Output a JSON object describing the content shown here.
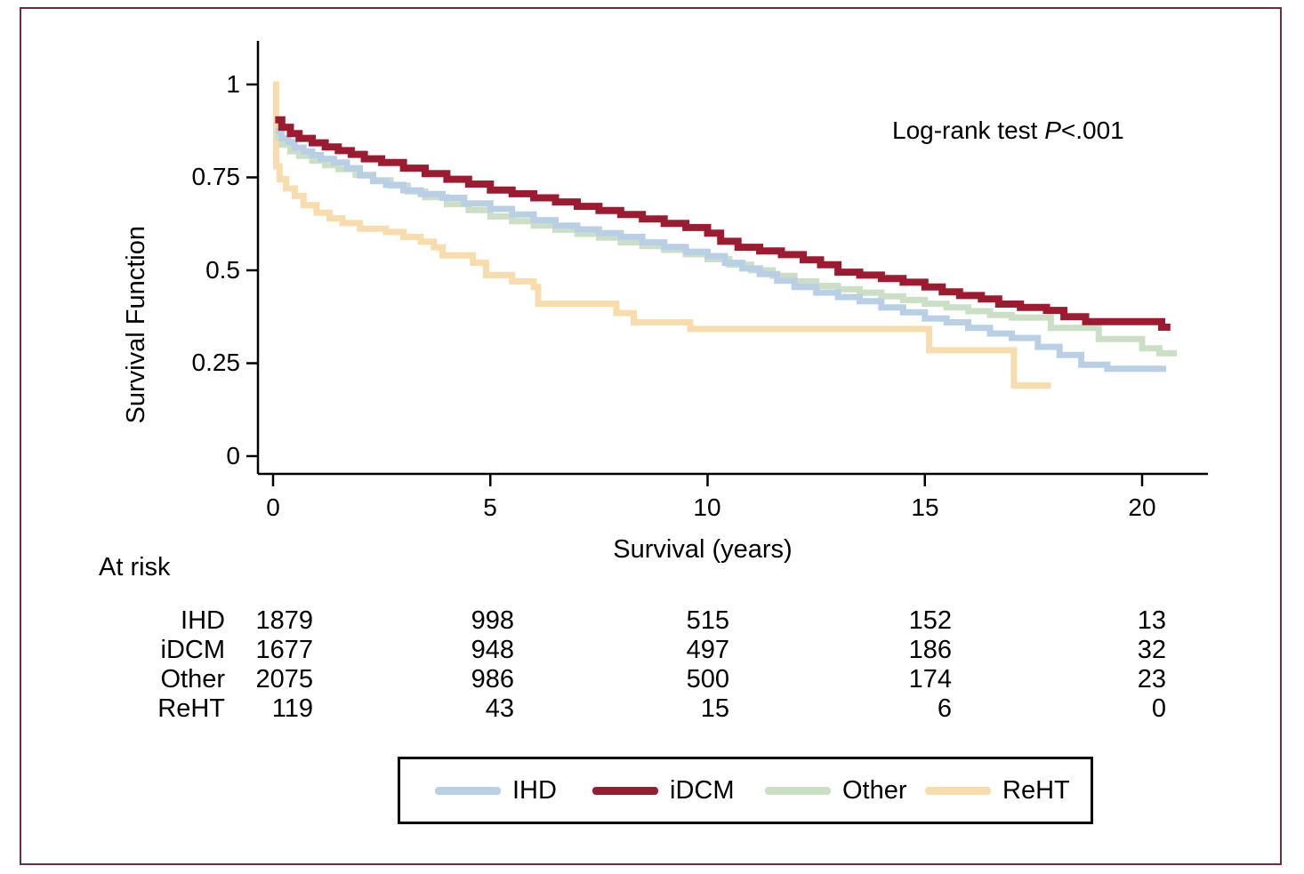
{
  "figure": {
    "border_color": "#702b3c",
    "background": "#ffffff"
  },
  "chart_data": {
    "type": "line",
    "subtype": "kaplan-meier-step-survival",
    "title": "",
    "xlabel": "Survival (years)",
    "ylabel": "Survival Function",
    "xlim": [
      0,
      21.3
    ],
    "ylim": [
      0,
      1.05
    ],
    "grid": false,
    "legend_position": "bottom",
    "annotation": {
      "prefix": "Log-rank test ",
      "p": "P",
      "suffix": "<.001"
    },
    "xticks": [
      {
        "value": 0,
        "label": "0"
      },
      {
        "value": 5,
        "label": "5"
      },
      {
        "value": 10,
        "label": "10"
      },
      {
        "value": 15,
        "label": "15"
      },
      {
        "value": 20,
        "label": "20"
      }
    ],
    "yticks": [
      {
        "value": 1,
        "label": "1"
      },
      {
        "value": 0.75,
        "label": "0.75"
      },
      {
        "value": 0.5,
        "label": "0.5"
      },
      {
        "value": 0.25,
        "label": "0.25"
      },
      {
        "value": 0,
        "label": "0"
      }
    ],
    "series": [
      {
        "name": "ReHT",
        "color": "#f8dcac",
        "points": [
          [
            0,
            1.0
          ],
          [
            0.07,
            0.78
          ],
          [
            0.15,
            0.745
          ],
          [
            0.3,
            0.72
          ],
          [
            0.5,
            0.7
          ],
          [
            0.7,
            0.675
          ],
          [
            1.0,
            0.655
          ],
          [
            1.3,
            0.64
          ],
          [
            1.6,
            0.627
          ],
          [
            2.0,
            0.612
          ],
          [
            2.6,
            0.603
          ],
          [
            3.0,
            0.59
          ],
          [
            3.4,
            0.577
          ],
          [
            3.7,
            0.562
          ],
          [
            3.9,
            0.54
          ],
          [
            4.6,
            0.52
          ],
          [
            4.9,
            0.487
          ],
          [
            5.5,
            0.47
          ],
          [
            6.0,
            0.455
          ],
          [
            6.1,
            0.41
          ],
          [
            7.7,
            0.41
          ],
          [
            7.9,
            0.385
          ],
          [
            8.3,
            0.36
          ],
          [
            9.4,
            0.36
          ],
          [
            9.6,
            0.342
          ],
          [
            15.0,
            0.342
          ],
          [
            15.1,
            0.285
          ],
          [
            16.95,
            0.285
          ],
          [
            17.05,
            0.19
          ],
          [
            17.9,
            0.19
          ]
        ]
      },
      {
        "name": "Other",
        "color": "#cbdfc5",
        "points": [
          [
            0.05,
            0.858
          ],
          [
            0.2,
            0.838
          ],
          [
            0.4,
            0.82
          ],
          [
            0.6,
            0.808
          ],
          [
            0.9,
            0.795
          ],
          [
            1.2,
            0.783
          ],
          [
            1.5,
            0.772
          ],
          [
            1.9,
            0.757
          ],
          [
            2.3,
            0.742
          ],
          [
            2.7,
            0.728
          ],
          [
            3.1,
            0.712
          ],
          [
            3.5,
            0.697
          ],
          [
            4.0,
            0.678
          ],
          [
            4.5,
            0.662
          ],
          [
            5.0,
            0.645
          ],
          [
            5.5,
            0.632
          ],
          [
            6.0,
            0.62
          ],
          [
            6.5,
            0.609
          ],
          [
            7.0,
            0.598
          ],
          [
            7.5,
            0.588
          ],
          [
            8.0,
            0.575
          ],
          [
            8.5,
            0.565
          ],
          [
            9.0,
            0.555
          ],
          [
            9.5,
            0.543
          ],
          [
            10.0,
            0.53
          ],
          [
            10.5,
            0.515
          ],
          [
            11.0,
            0.5
          ],
          [
            11.5,
            0.485
          ],
          [
            12.0,
            0.47
          ],
          [
            12.5,
            0.458
          ],
          [
            13.0,
            0.449
          ],
          [
            13.5,
            0.44
          ],
          [
            14.0,
            0.43
          ],
          [
            14.5,
            0.42
          ],
          [
            15.0,
            0.41
          ],
          [
            15.5,
            0.4
          ],
          [
            16.0,
            0.39
          ],
          [
            16.5,
            0.38
          ],
          [
            17.0,
            0.373
          ],
          [
            17.9,
            0.345
          ],
          [
            19.0,
            0.315
          ],
          [
            20.0,
            0.29
          ],
          [
            20.4,
            0.277
          ],
          [
            20.8,
            0.277
          ]
        ]
      },
      {
        "name": "IHD",
        "color": "#b9cfe6",
        "points": [
          [
            0.05,
            0.875
          ],
          [
            0.2,
            0.855
          ],
          [
            0.35,
            0.845
          ],
          [
            0.5,
            0.83
          ],
          [
            0.7,
            0.82
          ],
          [
            0.9,
            0.81
          ],
          [
            1.1,
            0.8
          ],
          [
            1.4,
            0.79
          ],
          [
            1.7,
            0.775
          ],
          [
            2.0,
            0.755
          ],
          [
            2.3,
            0.74
          ],
          [
            2.6,
            0.73
          ],
          [
            3.0,
            0.715
          ],
          [
            3.4,
            0.705
          ],
          [
            3.9,
            0.695
          ],
          [
            4.4,
            0.68
          ],
          [
            5.0,
            0.665
          ],
          [
            5.5,
            0.65
          ],
          [
            6.0,
            0.635
          ],
          [
            6.5,
            0.62
          ],
          [
            7.0,
            0.61
          ],
          [
            7.5,
            0.6
          ],
          [
            8.0,
            0.59
          ],
          [
            8.5,
            0.575
          ],
          [
            9.0,
            0.563
          ],
          [
            9.5,
            0.55
          ],
          [
            10.0,
            0.538
          ],
          [
            10.4,
            0.52
          ],
          [
            10.8,
            0.505
          ],
          [
            11.2,
            0.49
          ],
          [
            11.6,
            0.472
          ],
          [
            12.0,
            0.455
          ],
          [
            12.5,
            0.44
          ],
          [
            13.0,
            0.428
          ],
          [
            13.5,
            0.417
          ],
          [
            14.0,
            0.4
          ],
          [
            14.5,
            0.387
          ],
          [
            15.0,
            0.37
          ],
          [
            15.5,
            0.36
          ],
          [
            16.0,
            0.345
          ],
          [
            16.5,
            0.33
          ],
          [
            17.0,
            0.318
          ],
          [
            17.6,
            0.294
          ],
          [
            18.1,
            0.272
          ],
          [
            18.6,
            0.246
          ],
          [
            19.2,
            0.235
          ],
          [
            20.55,
            0.235
          ]
        ]
      },
      {
        "name": "iDCM",
        "color": "#9d1b31",
        "points": [
          [
            0.05,
            0.905
          ],
          [
            0.2,
            0.885
          ],
          [
            0.4,
            0.868
          ],
          [
            0.6,
            0.855
          ],
          [
            0.9,
            0.843
          ],
          [
            1.2,
            0.832
          ],
          [
            1.5,
            0.822
          ],
          [
            1.8,
            0.812
          ],
          [
            2.1,
            0.8
          ],
          [
            2.5,
            0.79
          ],
          [
            3.0,
            0.775
          ],
          [
            3.5,
            0.76
          ],
          [
            4.0,
            0.745
          ],
          [
            4.5,
            0.732
          ],
          [
            5.0,
            0.716
          ],
          [
            5.5,
            0.706
          ],
          [
            6.0,
            0.695
          ],
          [
            6.5,
            0.684
          ],
          [
            7.0,
            0.672
          ],
          [
            7.5,
            0.661
          ],
          [
            8.0,
            0.65
          ],
          [
            8.5,
            0.638
          ],
          [
            9.0,
            0.626
          ],
          [
            9.5,
            0.615
          ],
          [
            10.0,
            0.6
          ],
          [
            10.3,
            0.578
          ],
          [
            10.7,
            0.562
          ],
          [
            11.2,
            0.552
          ],
          [
            11.7,
            0.542
          ],
          [
            12.2,
            0.528
          ],
          [
            12.6,
            0.515
          ],
          [
            13.0,
            0.495
          ],
          [
            13.5,
            0.487
          ],
          [
            14.0,
            0.478
          ],
          [
            14.5,
            0.468
          ],
          [
            15.0,
            0.455
          ],
          [
            15.4,
            0.442
          ],
          [
            15.8,
            0.432
          ],
          [
            16.3,
            0.423
          ],
          [
            16.7,
            0.409
          ],
          [
            17.2,
            0.4
          ],
          [
            17.8,
            0.392
          ],
          [
            18.2,
            0.375
          ],
          [
            18.7,
            0.362
          ],
          [
            20.35,
            0.362
          ],
          [
            20.45,
            0.347
          ],
          [
            20.65,
            0.347
          ]
        ]
      }
    ]
  },
  "at_risk": {
    "title": "At risk",
    "times": [
      0,
      5,
      10,
      15,
      20
    ],
    "rows": [
      {
        "label": "IHD",
        "values": [
          "1879",
          "998",
          "515",
          "152",
          "13"
        ]
      },
      {
        "label": "iDCM",
        "values": [
          "1677",
          "948",
          "497",
          "186",
          "32"
        ]
      },
      {
        "label": "Other",
        "values": [
          "2075",
          "986",
          "500",
          "174",
          "23"
        ]
      },
      {
        "label": "ReHT",
        "values": [
          "119",
          "43",
          "15",
          "6",
          "0"
        ]
      }
    ]
  },
  "legend": {
    "items": [
      {
        "label": "IHD",
        "color": "#b9cfe6"
      },
      {
        "label": "iDCM",
        "color": "#9d1b31"
      },
      {
        "label": "Other",
        "color": "#cbdfc5"
      },
      {
        "label": "ReHT",
        "color": "#f8dcac"
      }
    ]
  }
}
